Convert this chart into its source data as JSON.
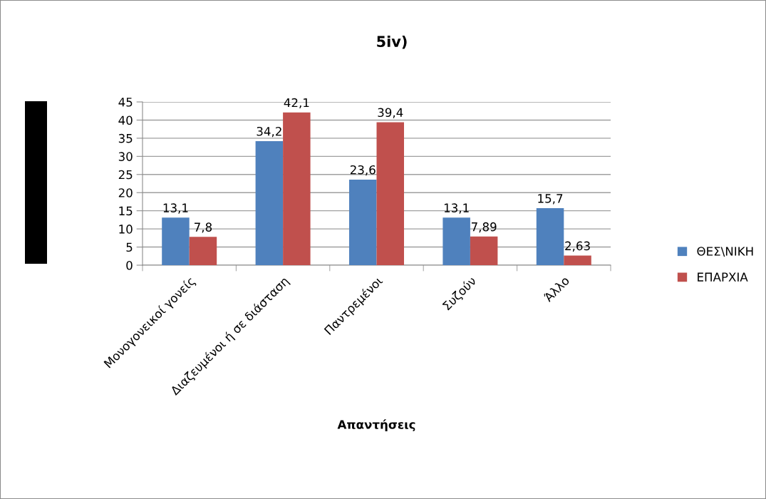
{
  "chart_data": {
    "type": "bar",
    "title": "5iv)",
    "xlabel": "Απαντήσεις",
    "categories": [
      "Μονογονεικοί γονείς",
      "Διαζευμένοι ή σε διάσταση",
      "Παντρεμένοι",
      "Συζούν",
      "Άλλο"
    ],
    "series": [
      {
        "name": "ΘΕΣ\\ΝΙΚΗ",
        "color": "#4f81bd",
        "values": [
          13.1,
          34.2,
          23.6,
          13.1,
          15.7
        ],
        "value_labels": [
          "13,1",
          "34,2",
          "23,6",
          "13,1",
          "15,7"
        ]
      },
      {
        "name": "ΕΠΑΡΧΙΑ",
        "color": "#c0504d",
        "values": [
          7.8,
          42.1,
          39.4,
          7.89,
          2.63
        ],
        "value_labels": [
          "7,8",
          "42,1",
          "39,4",
          "7,89",
          "2,63"
        ]
      }
    ],
    "ylim": [
      0,
      45
    ],
    "yticks": [
      0,
      5,
      10,
      15,
      20,
      25,
      30,
      35,
      40,
      45
    ],
    "grid": "y",
    "legend": "right"
  }
}
